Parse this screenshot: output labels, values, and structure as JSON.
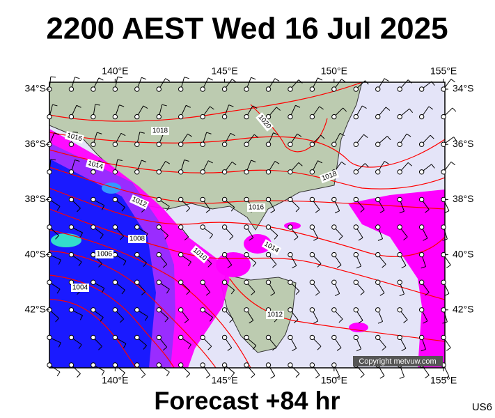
{
  "header": {
    "title": "2200 AEST Wed 16 Jul 2025"
  },
  "map": {
    "lon_ticks": [
      {
        "value": 140,
        "label": "140°E"
      },
      {
        "value": 145,
        "label": "145°E"
      },
      {
        "value": 150,
        "label": "150°E"
      },
      {
        "value": 155,
        "label": "155°E"
      }
    ],
    "lat_ticks": [
      {
        "value": 34,
        "label": "34°S"
      },
      {
        "value": 36,
        "label": "36°S"
      },
      {
        "value": 38,
        "label": "38°S"
      },
      {
        "value": 40,
        "label": "40°S"
      },
      {
        "value": 42,
        "label": "42°S"
      }
    ],
    "isobar_labels": [
      1016,
      1018,
      1020,
      1014,
      1012,
      1018,
      1016,
      1010,
      1014,
      1008,
      1006,
      1004,
      1012
    ],
    "copyright": "Copyright metvuw.com"
  },
  "footer": {
    "forecast": "Forecast +84 hr",
    "code": "US6"
  }
}
